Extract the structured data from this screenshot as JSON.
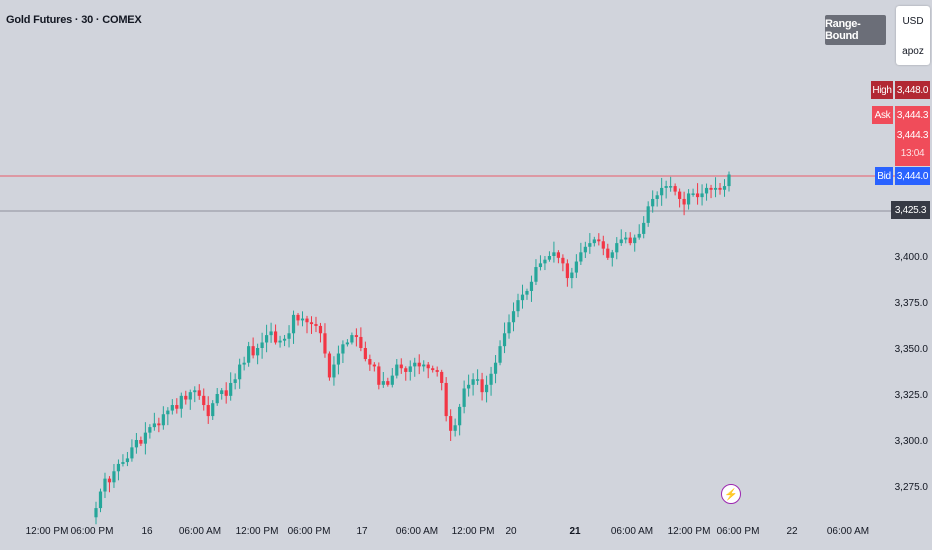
{
  "header": {
    "title": "Gold Futures · 30 · COMEX",
    "range_badge": "Range-Bound",
    "currency": "USD",
    "unit": "apoz"
  },
  "price_labels": {
    "high_label": "High",
    "high_value": "3,448.0",
    "ask_label": "Ask",
    "ask_value": "3,444.3",
    "last_value": "3,444.3",
    "countdown": "13:04",
    "bid_label": "Bid",
    "bid_value": "3,444.0",
    "level_value": "3,425.3"
  },
  "icons": {
    "event_icon": "lightning-bolt-icon"
  },
  "colors": {
    "background": "#d1d4dc",
    "up": "#26a69a",
    "down": "#f23645",
    "high_badge": "#b22833",
    "ask_badge": "#f04c5a",
    "bid_badge": "#2962ff",
    "level_badge": "#363a45",
    "accent": "#9c27b0"
  },
  "chart_data": {
    "type": "candlestick",
    "title": "Gold Futures · 30 · COMEX",
    "y_ticks": [
      "3,275.0",
      "3,300.0",
      "3,325.0",
      "3,350.0",
      "3,375.0",
      "3,400.0"
    ],
    "y_tick_values": [
      3275,
      3300,
      3325,
      3350,
      3375,
      3400
    ],
    "ylim": [
      3260,
      3455
    ],
    "x_ticks": [
      "12:00 PM",
      "06:00 PM",
      "16",
      "06:00 AM",
      "12:00 PM",
      "06:00 PM",
      "17",
      "06:00 AM",
      "12:00 PM",
      "20",
      "21",
      "06:00 AM",
      "12:00 PM",
      "06:00 PM",
      "22",
      "06:00 AM"
    ],
    "x_tick_bold": [
      false,
      false,
      false,
      false,
      false,
      false,
      false,
      false,
      false,
      false,
      true,
      false,
      false,
      false,
      false,
      false
    ],
    "horizontal_lines": [
      {
        "value": 3444.3,
        "color": "#f23645"
      },
      {
        "value": 3425.3,
        "color": "#787b86"
      }
    ],
    "closes": [
      3263,
      3272,
      3279,
      3277,
      3283,
      3287,
      3288,
      3290,
      3296,
      3300,
      3298,
      3304,
      3307,
      3309,
      3308,
      3314,
      3316,
      3319,
      3317,
      3324,
      3322,
      3326,
      3327,
      3324,
      3319,
      3313,
      3320,
      3325,
      3327,
      3324,
      3331,
      3333,
      3341,
      3342,
      3351,
      3346,
      3350,
      3353,
      3357,
      3359,
      3353,
      3354,
      3355,
      3358,
      3368,
      3365,
      3366,
      3364,
      3363,
      3362,
      3358,
      3347,
      3334,
      3341,
      3347,
      3352,
      3353,
      3357,
      3356,
      3350,
      3344,
      3341,
      3340,
      3330,
      3332,
      3330,
      3335,
      3341,
      3339,
      3337,
      3340,
      3342,
      3340,
      3341,
      3339,
      3338,
      3337,
      3331,
      3313,
      3305,
      3308,
      3318,
      3328,
      3330,
      3333,
      3333,
      3326,
      3330,
      3336,
      3342,
      3351,
      3358,
      3364,
      3370,
      3376,
      3379,
      3381,
      3386,
      3394,
      3396,
      3398,
      3400,
      3402,
      3399,
      3396,
      3388,
      3391,
      3397,
      3402,
      3405,
      3407,
      3409,
      3408,
      3404,
      3399,
      3402,
      3407,
      3409,
      3410,
      3407,
      3410,
      3412,
      3418,
      3427,
      3431,
      3433,
      3437,
      3438,
      3438,
      3435,
      3431,
      3428,
      3434,
      3434,
      3432,
      3434,
      3437,
      3436,
      3437,
      3436,
      3438,
      3444.3
    ]
  }
}
